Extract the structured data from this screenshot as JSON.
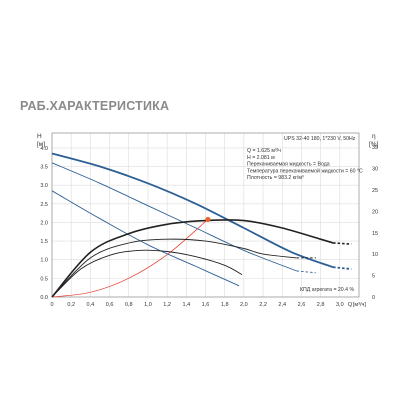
{
  "page_title": "РАБ.ХАРАКТЕРИСТИКА",
  "colors": {
    "blue": "#2c5f94",
    "black": "#222222",
    "red": "#e83a2c",
    "orange": "#e8632a",
    "grid": "#dcdcdc",
    "text": "#333333"
  },
  "chart_data": {
    "type": "line",
    "xlabel": "Q [м³/ч]",
    "x_unit_label": "[м³/ч]",
    "x_axis_title": "Q",
    "ylabel_left": "H [м]",
    "ylabel_left_title": "H",
    "ylabel_left_unit": "[м]",
    "ylabel_right": "[%]",
    "ylabel_right_title": "η",
    "ylabel_right_unit": "[%]",
    "xlim": [
      0,
      3.2
    ],
    "ylim_left": [
      0,
      4.4
    ],
    "ylim_right": [
      0,
      38.3
    ],
    "x_ticks": [
      "0",
      "0,2",
      "0,4",
      "0,6",
      "0,8",
      "1,0",
      "1,2",
      "1,4",
      "1,6",
      "1,8",
      "2,0",
      "2,2",
      "2,4",
      "2,6",
      "2,8",
      "3,0"
    ],
    "y_ticks_left": [
      "0.0",
      "0.5",
      "1.0",
      "1.5",
      "2.0",
      "2.5",
      "3.0",
      "3.5",
      "4.0"
    ],
    "y_ticks_right": [
      "0",
      "5",
      "10",
      "15",
      "20",
      "25",
      "30",
      "35"
    ],
    "grid": true,
    "info_box": {
      "model": "UPS 32-40 180, 1*230 V, 50Hz",
      "lines": [
        "Q = 1.625 м³/ч",
        "H = 2.081 м",
        "Перекачиваемая жидкость = Вода",
        "Температура перекачиваемой жидкости = 60 °C",
        "Плотность = 983.2 кг/м³"
      ]
    },
    "efficiency_label": "КПД агрегата = 20.4 %",
    "duty_point": {
      "x": 1.625,
      "y": 2.081
    },
    "pump_curves": [
      {
        "speed": 3,
        "x": [
          0,
          0.5,
          1.0,
          1.5,
          2.0,
          2.5,
          2.93
        ],
        "y": [
          3.85,
          3.5,
          3.05,
          2.5,
          1.85,
          1.2,
          0.8
        ],
        "dashed_to": {
          "x": 3.12,
          "y": 0.75
        }
      },
      {
        "speed": 2,
        "x": [
          0,
          0.5,
          1.0,
          1.5,
          2.0,
          2.55
        ],
        "y": [
          3.6,
          3.05,
          2.45,
          1.85,
          1.25,
          0.7
        ],
        "dashed_to": {
          "x": 2.75,
          "y": 0.65
        }
      },
      {
        "speed": 1,
        "x": [
          0,
          0.5,
          1.0,
          1.5,
          1.95
        ],
        "y": [
          2.85,
          2.1,
          1.4,
          0.82,
          0.3
        ]
      }
    ],
    "power_curves": [
      {
        "speed": 3,
        "x": [
          0,
          0.4,
          0.8,
          1.2,
          1.6,
          2.0,
          2.4,
          2.8,
          2.93
        ],
        "y": [
          0,
          1.2,
          1.7,
          1.95,
          2.05,
          2.05,
          1.85,
          1.55,
          1.45
        ],
        "dashed_to": {
          "x": 3.12,
          "y": 1.42
        }
      },
      {
        "speed": 2,
        "x": [
          0,
          0.4,
          0.8,
          1.2,
          1.6,
          2.0,
          2.2,
          2.55
        ],
        "y": [
          0,
          1.05,
          1.45,
          1.55,
          1.5,
          1.3,
          1.15,
          1.05
        ],
        "dashed_to": {
          "x": 2.75,
          "y": 1.05
        }
      },
      {
        "speed": 1,
        "x": [
          0,
          0.3,
          0.6,
          0.9,
          1.2,
          1.5,
          1.8,
          1.98
        ],
        "y": [
          0,
          0.75,
          1.12,
          1.25,
          1.22,
          1.08,
          0.85,
          0.6
        ]
      }
    ],
    "system_curve": {
      "x": [
        0,
        0.4,
        0.8,
        1.2,
        1.625
      ],
      "y": [
        0,
        0.126,
        0.504,
        1.134,
        2.081
      ]
    }
  }
}
